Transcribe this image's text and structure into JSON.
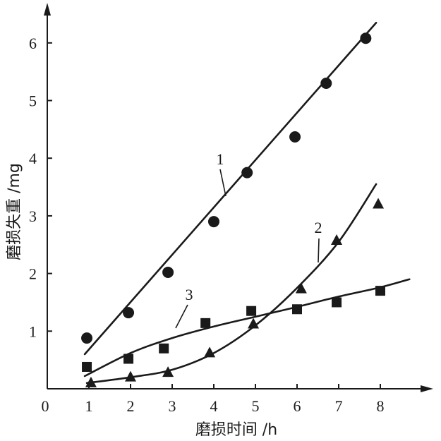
{
  "chart_data": {
    "type": "scatter",
    "xlabel": "磨损时间 /h",
    "ylabel": "磨损失重 /mg",
    "origin_label": "0",
    "xlim": [
      0,
      9
    ],
    "ylim": [
      0,
      6.5
    ],
    "x_ticks": [
      1,
      2,
      3,
      4,
      5,
      6,
      7,
      8
    ],
    "y_ticks": [
      1,
      2,
      3,
      4,
      5,
      6
    ],
    "grid": false,
    "series": [
      {
        "name": "1",
        "marker": "circle",
        "x": [
          0.95,
          1.95,
          2.9,
          4.0,
          4.8,
          5.95,
          6.7,
          7.65
        ],
        "y": [
          0.88,
          1.32,
          2.02,
          2.9,
          3.75,
          4.37,
          5.3,
          6.08
        ],
        "fit": [
          [
            0.9,
            0.6
          ],
          [
            7.9,
            6.35
          ]
        ]
      },
      {
        "name": "2",
        "marker": "triangle",
        "x": [
          1.05,
          2.0,
          2.9,
          3.9,
          4.95,
          6.1,
          6.95,
          7.95
        ],
        "y": [
          0.1,
          0.2,
          0.28,
          0.62,
          1.12,
          1.73,
          2.57,
          3.2
        ],
        "fit": [
          [
            0.95,
            0.1
          ],
          [
            2.0,
            0.2
          ],
          [
            3.0,
            0.33
          ],
          [
            4.0,
            0.62
          ],
          [
            5.0,
            1.1
          ],
          [
            6.0,
            1.75
          ],
          [
            7.0,
            2.55
          ],
          [
            7.9,
            3.55
          ]
        ]
      },
      {
        "name": "3",
        "marker": "square",
        "x": [
          0.95,
          1.95,
          2.8,
          3.8,
          4.9,
          6.0,
          6.95,
          8.0
        ],
        "y": [
          0.38,
          0.52,
          0.7,
          1.14,
          1.35,
          1.38,
          1.5,
          1.7
        ],
        "fit": [
          [
            0.9,
            0.22
          ],
          [
            2.0,
            0.62
          ],
          [
            3.0,
            0.88
          ],
          [
            4.0,
            1.08
          ],
          [
            5.0,
            1.25
          ],
          [
            6.0,
            1.42
          ],
          [
            7.0,
            1.6
          ],
          [
            8.0,
            1.76
          ],
          [
            8.7,
            1.9
          ]
        ]
      }
    ]
  }
}
